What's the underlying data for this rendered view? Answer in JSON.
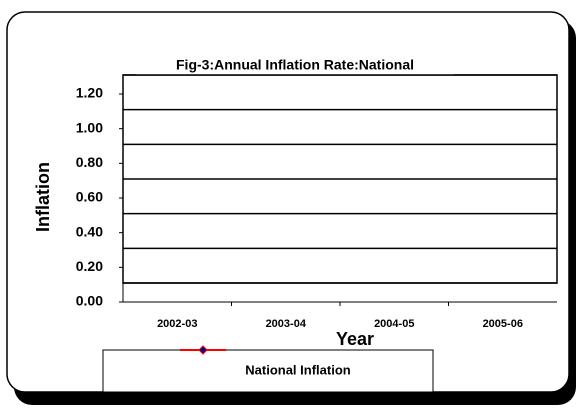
{
  "chart_data": {
    "type": "line",
    "title": "Fig-3:Annual Inflation Rate:National",
    "x_label": "Year",
    "y_label": "Inflation",
    "categories": [
      "2002-03",
      "2003-04",
      "2004-05",
      "2005-06"
    ],
    "series": [
      {
        "name": "National Inflation",
        "color": "#ff0000",
        "marker_color": "#000080",
        "values": [
          null,
          null,
          null,
          null
        ]
      }
    ],
    "ylim": [
      0,
      1.2
    ],
    "yticks": [
      {
        "value": 0,
        "label": "0.00"
      },
      {
        "value": 0.2,
        "label": "0.20"
      },
      {
        "value": 0.4,
        "label": "0.40"
      },
      {
        "value": 0.6,
        "label": "0.60"
      },
      {
        "value": 0.8,
        "label": "0.80"
      },
      {
        "value": 1.0,
        "label": "1.00"
      },
      {
        "value": 1.2,
        "label": "1.20"
      }
    ],
    "grid": true,
    "legend": "bottom"
  }
}
